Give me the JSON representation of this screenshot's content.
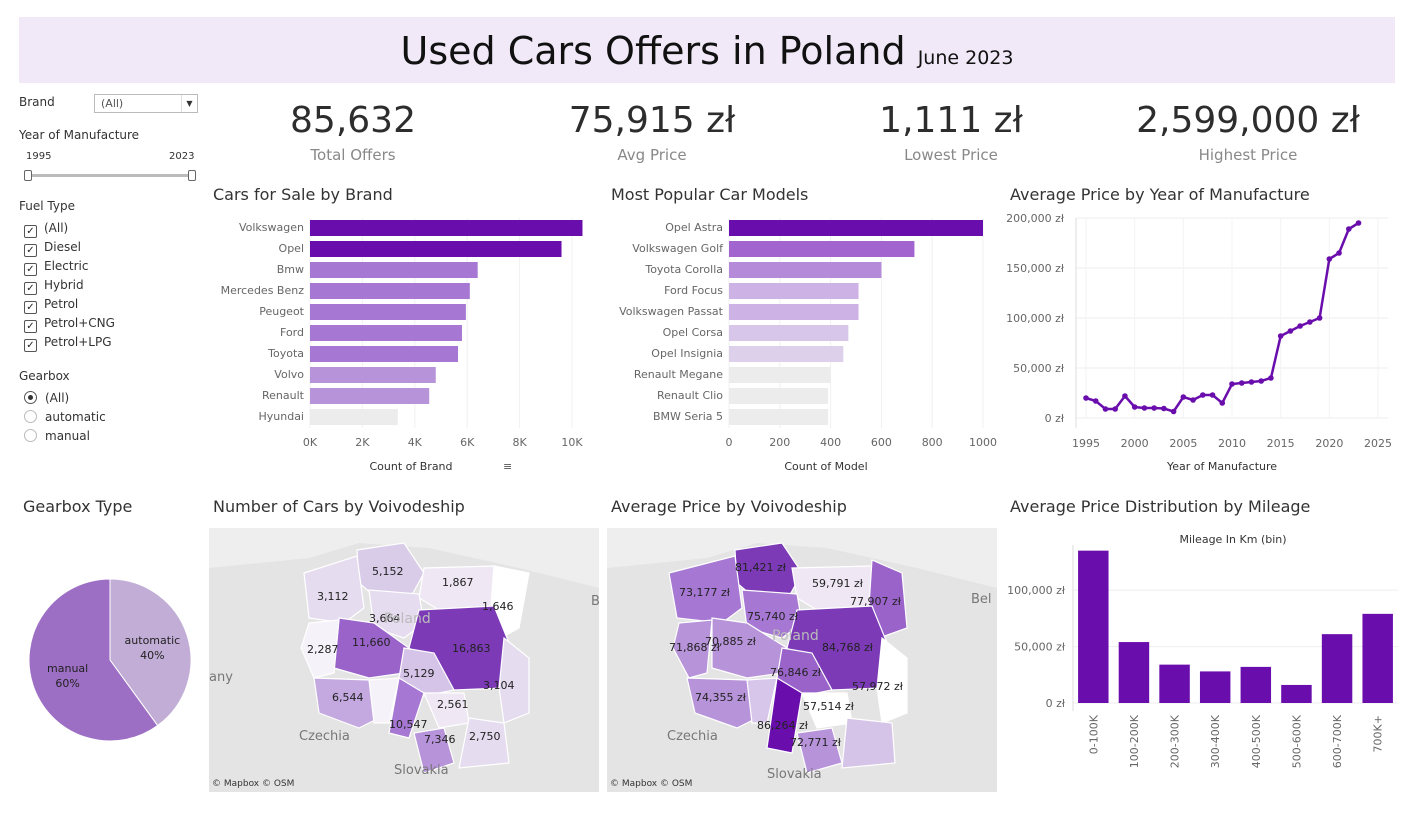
{
  "header": {
    "title": "Used Cars Offers in Poland",
    "subtitle": "June 2023"
  },
  "filters": {
    "brand": {
      "label": "Brand",
      "value": "(All)"
    },
    "year": {
      "label": "Year of Manufacture",
      "min_label": "1995",
      "max_label": "2023"
    },
    "fuel": {
      "label": "Fuel Type",
      "options": [
        "(All)",
        "Diesel",
        "Electric",
        "Hybrid",
        "Petrol",
        "Petrol+CNG",
        "Petrol+LPG"
      ]
    },
    "gearbox": {
      "label": "Gearbox",
      "options": [
        "(All)",
        "automatic",
        "manual"
      ],
      "selected": "(All)"
    }
  },
  "kpis": [
    {
      "value": "85,632",
      "label": "Total Offers"
    },
    {
      "value": "75,915 zł",
      "label": "Avg Price"
    },
    {
      "value": "1,111 zł",
      "label": "Lowest Price"
    },
    {
      "value": "2,599,000 zł",
      "label": "Highest Price"
    }
  ],
  "chart_data": [
    {
      "id": "brand",
      "type": "bar",
      "title": "Cars for Sale by Brand",
      "xlabel": "Count of Brand",
      "orientation": "horizontal",
      "categories": [
        "Volkswagen",
        "Opel",
        "Bmw",
        "Mercedes Benz",
        "Peugeot",
        "Ford",
        "Toyota",
        "Volvo",
        "Renault",
        "Hyundai"
      ],
      "values": [
        10400,
        9600,
        6400,
        6100,
        5950,
        5800,
        5650,
        4800,
        4550,
        3350
      ],
      "colors": [
        "#6a0dad",
        "#6a0dad",
        "#a678d3",
        "#a678d3",
        "#a678d3",
        "#a678d3",
        "#a678d3",
        "#b793da",
        "#b793da",
        "#ececec"
      ],
      "xticks": [
        "0K",
        "2K",
        "4K",
        "6K",
        "8K",
        "10K"
      ],
      "xlim": [
        0,
        10000
      ]
    },
    {
      "id": "models",
      "type": "bar",
      "title": "Most Popular Car Models",
      "xlabel": "Count of Model",
      "orientation": "horizontal",
      "categories": [
        "Opel Astra",
        "Volkswagen Golf",
        "Toyota Corolla",
        "Ford Focus",
        "Volkswagen Passat",
        "Opel Corsa",
        "Opel Insignia",
        "Renault Megane",
        "Renault Clio",
        "BMW Seria 5"
      ],
      "values": [
        1000,
        730,
        600,
        510,
        510,
        470,
        450,
        400,
        390,
        390
      ],
      "colors": [
        "#6a0dad",
        "#a264cf",
        "#b58ad9",
        "#cdb2e5",
        "#cdb2e5",
        "#d8c6ea",
        "#dcd0ea",
        "#ececec",
        "#ececec",
        "#ececec"
      ],
      "xticks": [
        "0",
        "200",
        "400",
        "600",
        "800",
        "1000"
      ],
      "xlim": [
        0,
        1000
      ]
    },
    {
      "id": "year",
      "type": "line",
      "title": "Average Price by Year of Manufacture",
      "xlabel": "Year of Manufacture",
      "x": [
        1995,
        1996,
        1997,
        1998,
        1999,
        2000,
        2001,
        2002,
        2003,
        2004,
        2005,
        2006,
        2007,
        2008,
        2009,
        2010,
        2011,
        2012,
        2013,
        2014,
        2015,
        2016,
        2017,
        2018,
        2019,
        2020,
        2021,
        2022,
        2023
      ],
      "y": [
        20000,
        17000,
        9000,
        9000,
        22000,
        11000,
        10000,
        10000,
        9500,
        6500,
        21000,
        18000,
        23000,
        23000,
        15000,
        34000,
        35000,
        36000,
        37000,
        40000,
        82000,
        87000,
        92000,
        96000,
        100000,
        159000,
        165000,
        189000,
        195000
      ],
      "yticks": [
        "0 zł",
        "50,000 zł",
        "100,000 zł",
        "150,000 zł",
        "200,000 zł"
      ],
      "xticks": [
        "1995",
        "2000",
        "2005",
        "2010",
        "2015",
        "2020",
        "2025"
      ],
      "xlim": [
        1995,
        2025
      ],
      "ylim": [
        0,
        200000
      ]
    },
    {
      "id": "gearbox",
      "type": "pie",
      "title": "Gearbox Type",
      "labels": [
        "automatic",
        "manual"
      ],
      "values": [
        40,
        60
      ],
      "percent_labels": [
        "40%",
        "60%"
      ],
      "colors": [
        "#c2add6",
        "#9d6fc4"
      ]
    },
    {
      "id": "mileage",
      "type": "bar",
      "title": "Average Price Distribution by Mileage",
      "subtitle": "Mileage In Km (bin)",
      "categories": [
        "0-100K",
        "100-200K",
        "200-300K",
        "300-400K",
        "400-500K",
        "500-600K",
        "600-700K",
        "700K+"
      ],
      "values": [
        135000,
        54000,
        34000,
        28000,
        32000,
        16000,
        61000,
        79000
      ],
      "yticks": [
        "0 zł",
        "50,000 zł",
        "100,000 zł"
      ],
      "ylim": [
        0,
        140000
      ],
      "color": "#6a0dad"
    }
  ],
  "maps": {
    "count": {
      "title": "Number of Cars by Voivodeship",
      "credit": "© Mapbox © OSM",
      "country_label": "Poland",
      "neighbors": [
        "Czechia",
        "Slovakia",
        "any",
        "B"
      ],
      "labels": [
        "5,152",
        "1,867",
        "3,112",
        "3,664",
        "1,646",
        "11,660",
        "16,863",
        "2,287",
        "5,129",
        "3,104",
        "6,544",
        "2,561",
        "10,547",
        "7,346",
        "2,750"
      ]
    },
    "price": {
      "title": "Average Price by Voivodeship",
      "credit": "© Mapbox © OSM",
      "country_label": "Poland",
      "neighbors": [
        "Czechia",
        "Slovakia",
        "Bel"
      ],
      "labels": [
        "81,421 zł",
        "59,791 zł",
        "73,177 zł",
        "77,907 zł",
        "75,740 zł",
        "70,885 zł",
        "84,768 zł",
        "71,868 zł",
        "76,846 zł",
        "57,972 zł",
        "74,355 zł",
        "57,514 zł",
        "86,264 zł",
        "72,771 zł"
      ]
    }
  }
}
